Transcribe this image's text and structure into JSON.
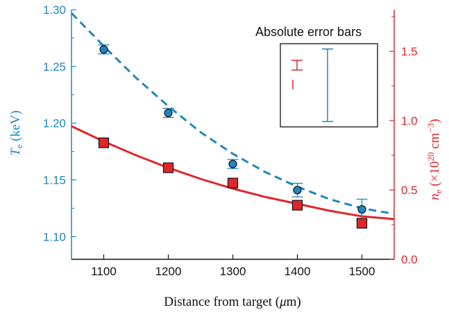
{
  "chart_data": {
    "type": "scatter",
    "x_label": "Distance from target (μm)",
    "xlim": [
      1050,
      1550
    ],
    "x_ticks": [
      "1100",
      "1200",
      "1300",
      "1400",
      "1500"
    ],
    "left_axis": {
      "label": "Te (keV)",
      "ylim": [
        1.08,
        1.3
      ],
      "ticks": [
        "1.10",
        "1.15",
        "1.20",
        "1.25",
        "1.30"
      ],
      "color": "#1f86c0"
    },
    "right_axis": {
      "label": "ne (×10^20 cm^-3)",
      "ylim": [
        0.0,
        1.8
      ],
      "ticks": [
        "0.0",
        "0.5",
        "1.0",
        "1.5"
      ],
      "color": "#e0262a"
    },
    "series": [
      {
        "axis": "left",
        "marker": "circle",
        "color": "#1f86c0",
        "x": [
          1100,
          1200,
          1300,
          1400,
          1500
        ],
        "y": [
          1.265,
          1.209,
          1.164,
          1.141,
          1.124
        ],
        "err": [
          0.004,
          0.004,
          0.004,
          0.006,
          0.009
        ]
      },
      {
        "axis": "right",
        "marker": "square",
        "color": "#e0262a",
        "x": [
          1100,
          1200,
          1300,
          1400,
          1500
        ],
        "y": [
          0.84,
          0.66,
          0.55,
          0.39,
          0.26
        ]
      }
    ],
    "fits": [
      {
        "axis": "left",
        "style": "dashed",
        "color": "#1f86c0",
        "x": [
          1050,
          1100,
          1150,
          1200,
          1250,
          1300,
          1350,
          1400,
          1450,
          1500,
          1550
        ],
        "y": [
          1.297,
          1.268,
          1.24,
          1.215,
          1.192,
          1.173,
          1.157,
          1.144,
          1.133,
          1.125,
          1.12
        ]
      },
      {
        "axis": "right",
        "style": "solid",
        "color": "#e0262a",
        "x": [
          1050,
          1100,
          1150,
          1200,
          1250,
          1300,
          1350,
          1400,
          1450,
          1500,
          1550
        ],
        "y": [
          0.96,
          0.85,
          0.75,
          0.66,
          0.58,
          0.51,
          0.45,
          0.4,
          0.35,
          0.31,
          0.29
        ]
      }
    ],
    "legend": {
      "title": "Absolute error bars",
      "position": "top-right",
      "bars": [
        {
          "axis": "right",
          "color": "#e0262a",
          "half_err": 0.035
        },
        {
          "axis": "left",
          "color": "#1f86c0",
          "half_err": 0.032
        }
      ]
    }
  }
}
